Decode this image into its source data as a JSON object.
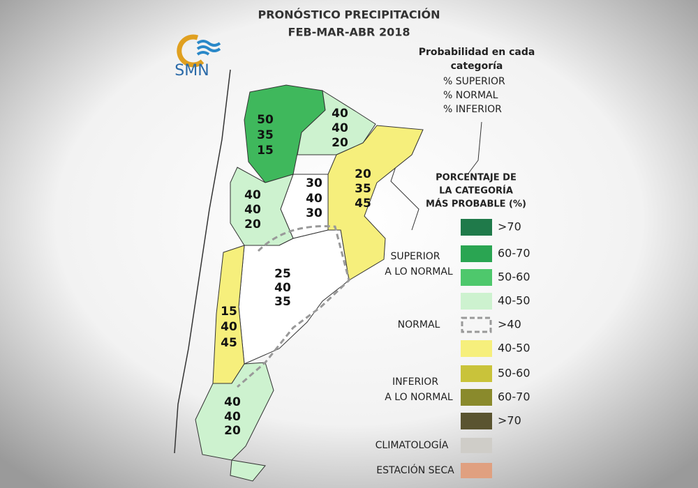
{
  "header": {
    "title": "PRONÓSTICO PRECIPITACIÓN",
    "subtitle": "FEB-MAR-ABR 2018",
    "logo": "SMN"
  },
  "legend_key": {
    "title_lines": [
      "Probabilidad en cada",
      "categoría"
    ],
    "rows": [
      "% SUPERIOR",
      "% NORMAL",
      "% INFERIOR"
    ]
  },
  "scale": {
    "title_lines": [
      "PORCENTAJE DE",
      "LA CATEGORÍA",
      "MÁS PROBABLE (%)"
    ],
    "superior": {
      "label_lines": [
        "SUPERIOR",
        "A LO NORMAL"
      ],
      "ranges": [
        ">70",
        "60-70",
        "50-60",
        "40-50"
      ]
    },
    "normal": {
      "label": "NORMAL",
      "range": ">40"
    },
    "inferior": {
      "label_lines": [
        "INFERIOR",
        "A LO NORMAL"
      ],
      "ranges": [
        "40-50",
        "50-60",
        "60-70",
        ">70"
      ]
    },
    "climatology": "CLIMATOLOGÍA",
    "dry_season": "ESTACIÓN SECA"
  },
  "regions": [
    {
      "superior": 50,
      "normal": 35,
      "inferior": 15
    },
    {
      "superior": 40,
      "normal": 40,
      "inferior": 20
    },
    {
      "superior": 30,
      "normal": 40,
      "inferior": 30
    },
    {
      "superior": 40,
      "normal": 40,
      "inferior": 20
    },
    {
      "superior": 20,
      "normal": 35,
      "inferior": 45
    },
    {
      "superior": 25,
      "normal": 40,
      "inferior": 35
    },
    {
      "superior": 15,
      "normal": 40,
      "inferior": 45
    },
    {
      "superior": 40,
      "normal": 40,
      "inferior": 20
    }
  ]
}
